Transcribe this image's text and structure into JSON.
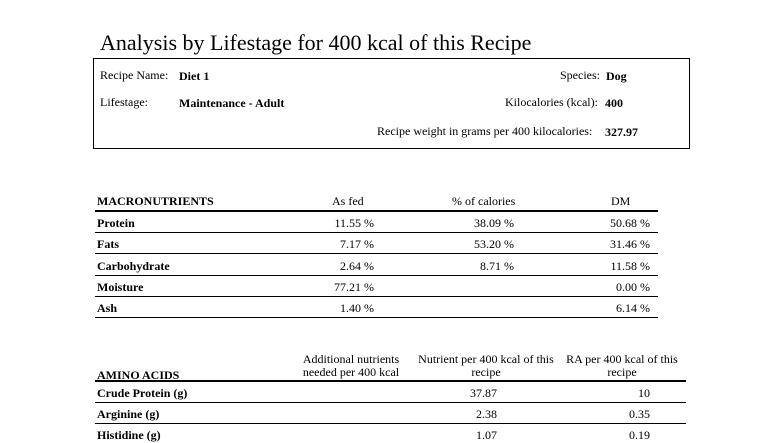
{
  "title": "Analysis by Lifestage for 400 kcal of this Recipe",
  "recipe": {
    "name_label": "Recipe Name:",
    "name_value": "Diet 1",
    "species_label": "Species:",
    "species_value": "Dog",
    "lifestage_label": "Lifestage:",
    "lifestage_value": "Maintenance - Adult",
    "kcal_label": "Kilocalories (kcal):",
    "kcal_value": "400",
    "weight_label": "Recipe weight in grams per 400 kilocalories:",
    "weight_value": "327.97"
  },
  "macronutrients": {
    "header": "MACRONUTRIENTS",
    "columns": [
      "As fed",
      "% of calories",
      "DM"
    ],
    "rows": [
      {
        "name": "Protein",
        "as_fed": "11.55 %",
        "pct_calories": "38.09 %",
        "dm": "50.68 %"
      },
      {
        "name": "Fats",
        "as_fed": "7.17 %",
        "pct_calories": "53.20 %",
        "dm": "31.46 %"
      },
      {
        "name": "Carbohydrate",
        "as_fed": "2.64 %",
        "pct_calories": "8.71 %",
        "dm": "11.58 %"
      },
      {
        "name": "Moisture",
        "as_fed": "77.21 %",
        "pct_calories": "",
        "dm": "0.00 %"
      },
      {
        "name": "Ash",
        "as_fed": "1.40 %",
        "pct_calories": "",
        "dm": "6.14 %"
      }
    ]
  },
  "amino_acids": {
    "header": "AMINO ACIDS",
    "columns": [
      "Additional nutrients needed per 400 kcal",
      "Nutrient per 400 kcal of this recipe",
      "RA per 400 kcal of this recipe"
    ],
    "rows": [
      {
        "name": "Crude Protein (g)",
        "additional": "",
        "nutrient": "37.87",
        "ra": "10"
      },
      {
        "name": "Arginine (g)",
        "additional": "",
        "nutrient": "2.38",
        "ra": "0.35"
      },
      {
        "name": "Histidine (g)",
        "additional": "",
        "nutrient": "1.07",
        "ra": "0.19"
      }
    ]
  }
}
